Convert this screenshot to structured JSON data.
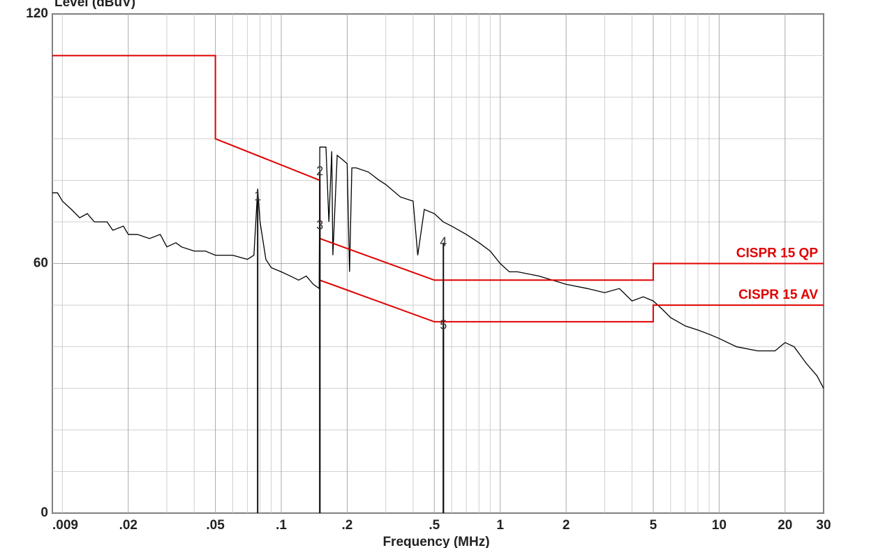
{
  "chart_data": {
    "type": "line",
    "y_label": "Level (dBuV)",
    "x_label": "Frequency (MHz)",
    "log_x": true,
    "grid": true,
    "xlim": [
      0.009,
      30
    ],
    "ylim": [
      0,
      120
    ],
    "xticks": [
      {
        "value": 0.009,
        "label": ".009"
      },
      {
        "value": 0.02,
        "label": ".02"
      },
      {
        "value": 0.05,
        "label": ".05"
      },
      {
        "value": 0.1,
        "label": ".1"
      },
      {
        "value": 0.2,
        "label": ".2"
      },
      {
        "value": 0.5,
        "label": ".5"
      },
      1,
      2,
      5,
      10,
      20,
      30
    ],
    "x_minor_ticks": [
      0.01,
      0.03,
      0.04,
      0.06,
      0.07,
      0.08,
      0.09,
      0.3,
      0.4,
      0.6,
      0.7,
      0.8,
      0.9,
      3,
      4,
      6,
      7,
      8,
      9
    ],
    "yticks": [
      0,
      60,
      120
    ],
    "y_minor_ticks": [
      10,
      20,
      30,
      40,
      50,
      70,
      80,
      90,
      100,
      110
    ],
    "series": [
      {
        "color": "#000000",
        "x": [
          0.009,
          0.0095,
          0.01,
          0.011,
          0.012,
          0.013,
          0.014,
          0.016,
          0.017,
          0.019,
          0.02,
          0.022,
          0.025,
          0.028,
          0.03,
          0.033,
          0.035,
          0.04,
          0.045,
          0.05,
          0.06,
          0.07,
          0.075,
          0.078,
          0.08,
          0.085,
          0.09,
          0.1,
          0.11,
          0.12,
          0.13,
          0.14,
          0.149,
          0.15,
          0.16,
          0.165,
          0.17,
          0.172,
          0.18,
          0.19,
          0.2,
          0.205,
          0.21,
          0.22,
          0.25,
          0.28,
          0.3,
          0.35,
          0.4,
          0.42,
          0.45,
          0.5,
          0.55,
          0.6,
          0.7,
          0.8,
          0.9,
          1,
          1.1,
          1.2,
          1.5,
          2,
          2.5,
          3,
          3.5,
          4,
          4.5,
          5,
          5.5,
          6,
          7,
          8,
          9,
          10,
          12,
          15,
          18,
          20,
          22,
          25,
          28,
          30
        ],
        "values": [
          77,
          77,
          75,
          73,
          71,
          72,
          70,
          70,
          68,
          69,
          67,
          67,
          66,
          67,
          64,
          65,
          64,
          63,
          63,
          62,
          62,
          61,
          62,
          78,
          70,
          61,
          59,
          58,
          57,
          56,
          57,
          55,
          54,
          88,
          88,
          70,
          87,
          62,
          86,
          85,
          84,
          58,
          83,
          83,
          82,
          80,
          79,
          76,
          75,
          62,
          73,
          72,
          70,
          69,
          67,
          65,
          63,
          60,
          58,
          58,
          57,
          55,
          54,
          53,
          54,
          51,
          52,
          51,
          49,
          47,
          45,
          44,
          43,
          42,
          40,
          39,
          39,
          41,
          40,
          36,
          33,
          30
        ]
      },
      {
        "name": "CISPR 15 QP",
        "color": "#e00000",
        "x": [
          0.009,
          0.05,
          0.05,
          0.15,
          0.15,
          0.5,
          5,
          5,
          30
        ],
        "values": [
          110,
          110,
          90,
          80,
          66,
          56,
          56,
          60,
          60
        ]
      },
      {
        "name": "CISPR 15 AV",
        "color": "#e00000",
        "x": [
          0.15,
          0.5,
          5,
          5,
          30
        ],
        "values": [
          56,
          46,
          46,
          50,
          50
        ]
      }
    ],
    "markers": [
      {
        "label": "1",
        "x": 0.078,
        "y": 76
      },
      {
        "label": "2",
        "x": 0.15,
        "y": 82
      },
      {
        "label": "3",
        "x": 0.15,
        "y": 69
      },
      {
        "label": "4",
        "x": 0.55,
        "y": 65
      },
      {
        "label": "5",
        "x": 0.55,
        "y": 45
      }
    ]
  }
}
